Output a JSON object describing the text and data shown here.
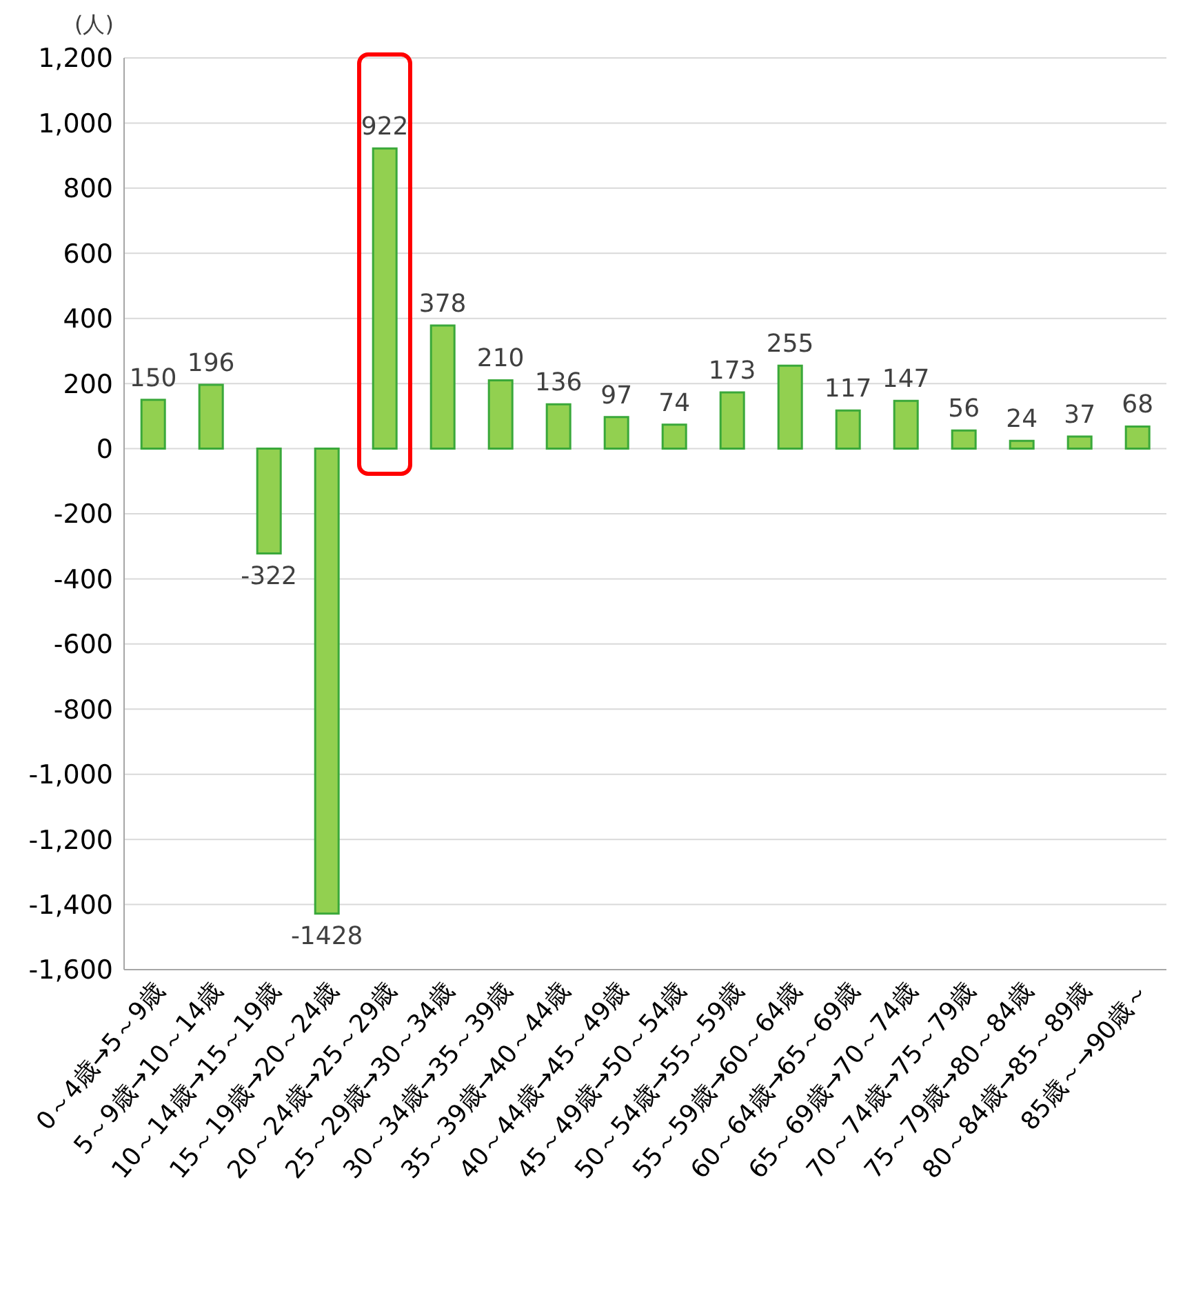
{
  "chart_data": {
    "type": "bar",
    "ylabel": "(人)",
    "categories": [
      "0～4歳→5～9歳",
      "5～9歳→10～14歳",
      "10～14歳→15～19歳",
      "15～19歳→20～24歳",
      "20～24歳→25～29歳",
      "25～29歳→30～34歳",
      "30～34歳→35～39歳",
      "35～39歳→40～44歳",
      "40～44歳→45～49歳",
      "45～49歳→50～54歳",
      "50～54歳→55～59歳",
      "55～59歳→60～64歳",
      "60～64歳→65～69歳",
      "65～69歳→70～74歳",
      "70～74歳→75～79歳",
      "75～79歳→80～84歳",
      "80～84歳→85～89歳",
      "85歳～→90歳～"
    ],
    "values": [
      150,
      196,
      -322,
      -1428,
      922,
      378,
      210,
      136,
      97,
      74,
      173,
      255,
      117,
      147,
      56,
      24,
      37,
      68
    ],
    "color": "#92d050",
    "ylim": [
      -1600,
      1200
    ],
    "yticks": [
      {
        "value": -1600,
        "label": "-1,600"
      },
      {
        "value": -1400,
        "label": "-1,400"
      },
      {
        "value": -1200,
        "label": "-1,200"
      },
      {
        "value": -1000,
        "label": "-1,000"
      },
      {
        "value": -800,
        "label": "-800"
      },
      {
        "value": -600,
        "label": "-600"
      },
      {
        "value": -400,
        "label": "-400"
      },
      {
        "value": -200,
        "label": "-200"
      },
      {
        "value": 0,
        "label": "0"
      },
      {
        "value": 200,
        "label": "200"
      },
      {
        "value": 400,
        "label": "400"
      },
      {
        "value": 600,
        "label": "600"
      },
      {
        "value": 800,
        "label": "800"
      },
      {
        "value": 1000,
        "label": "1,000"
      },
      {
        "value": 1200,
        "label": "1,200"
      }
    ],
    "grid": "y",
    "data_labels": true,
    "legend": false
  }
}
